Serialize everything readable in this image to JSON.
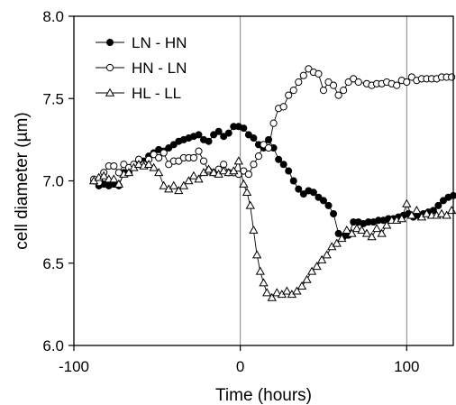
{
  "chart_data": {
    "type": "line",
    "title": "",
    "xlabel": "Time (hours)",
    "ylabel": "cell diameter (µm)",
    "xlim": [
      -100,
      128
    ],
    "ylim": [
      6.0,
      8.0
    ],
    "x_ticks": [
      -100,
      0,
      100
    ],
    "x_tick_labels": [
      "-100",
      "0",
      "100"
    ],
    "y_ticks": [
      6.0,
      6.5,
      7.0,
      7.5,
      8.0
    ],
    "y_tick_labels": [
      "6.0",
      "6.5",
      "7.0",
      "7.5",
      "8.0"
    ],
    "vertical_reference_lines": [
      0,
      100
    ],
    "grid": false,
    "legend_position": "top-left",
    "series": [
      {
        "name": "LN - HN",
        "marker": "filled-circle",
        "points": [
          [
            -88,
            7.0
          ],
          [
            -85,
            6.97
          ],
          [
            -82,
            6.98
          ],
          [
            -79,
            6.97
          ],
          [
            -76,
            6.98
          ],
          [
            -73,
            6.97
          ],
          [
            -70,
            7.05
          ],
          [
            -67,
            7.05
          ],
          [
            -64,
            7.09
          ],
          [
            -61,
            7.1
          ],
          [
            -58,
            7.12
          ],
          [
            -55,
            7.15
          ],
          [
            -52,
            7.17
          ],
          [
            -49,
            7.19
          ],
          [
            -46,
            7.18
          ],
          [
            -43,
            7.2
          ],
          [
            -40,
            7.22
          ],
          [
            -37,
            7.24
          ],
          [
            -34,
            7.25
          ],
          [
            -31,
            7.26
          ],
          [
            -28,
            7.27
          ],
          [
            -25,
            7.28
          ],
          [
            -22,
            7.25
          ],
          [
            -19,
            7.24
          ],
          [
            -16,
            7.28
          ],
          [
            -13,
            7.3
          ],
          [
            -10,
            7.27
          ],
          [
            -7,
            7.29
          ],
          [
            -4,
            7.33
          ],
          [
            -1,
            7.33
          ],
          [
            2,
            7.32
          ],
          [
            5,
            7.28
          ],
          [
            8,
            7.26
          ],
          [
            11,
            7.22
          ],
          [
            14,
            7.2
          ],
          [
            17,
            7.25
          ],
          [
            20,
            7.2
          ],
          [
            23,
            7.13
          ],
          [
            26,
            7.1
          ],
          [
            29,
            7.06
          ],
          [
            32,
            7.0
          ],
          [
            35,
            6.95
          ],
          [
            38,
            6.92
          ],
          [
            41,
            6.94
          ],
          [
            44,
            6.93
          ],
          [
            47,
            6.9
          ],
          [
            50,
            6.88
          ],
          [
            53,
            6.85
          ],
          [
            56,
            6.8
          ],
          [
            59,
            6.68
          ],
          [
            62,
            6.66
          ],
          [
            65,
            6.67
          ],
          [
            68,
            6.75
          ],
          [
            71,
            6.75
          ],
          [
            74,
            6.74
          ],
          [
            77,
            6.75
          ],
          [
            80,
            6.75
          ],
          [
            83,
            6.76
          ],
          [
            86,
            6.76
          ],
          [
            89,
            6.77
          ],
          [
            92,
            6.77
          ],
          [
            95,
            6.78
          ],
          [
            98,
            6.79
          ],
          [
            101,
            6.8
          ],
          [
            104,
            6.78
          ],
          [
            107,
            6.79
          ],
          [
            110,
            6.8
          ],
          [
            113,
            6.81
          ],
          [
            116,
            6.82
          ],
          [
            119,
            6.85
          ],
          [
            122,
            6.88
          ],
          [
            125,
            6.9
          ],
          [
            128,
            6.91
          ]
        ]
      },
      {
        "name": "HN - LN",
        "marker": "open-circle",
        "points": [
          [
            -88,
            7.01
          ],
          [
            -85,
            6.99
          ],
          [
            -82,
            7.05
          ],
          [
            -79,
            7.09
          ],
          [
            -76,
            7.09
          ],
          [
            -73,
            7.05
          ],
          [
            -70,
            7.1
          ],
          [
            -67,
            7.08
          ],
          [
            -64,
            7.1
          ],
          [
            -61,
            7.13
          ],
          [
            -58,
            7.1
          ],
          [
            -55,
            7.13
          ],
          [
            -52,
            7.16
          ],
          [
            -49,
            7.14
          ],
          [
            -46,
            7.17
          ],
          [
            -43,
            7.1
          ],
          [
            -40,
            7.12
          ],
          [
            -37,
            7.12
          ],
          [
            -34,
            7.14
          ],
          [
            -31,
            7.14
          ],
          [
            -28,
            7.14
          ],
          [
            -25,
            7.18
          ],
          [
            -22,
            7.12
          ],
          [
            -19,
            7.06
          ],
          [
            -16,
            7.05
          ],
          [
            -13,
            7.07
          ],
          [
            -10,
            7.1
          ],
          [
            -7,
            7.05
          ],
          [
            -4,
            7.05
          ],
          [
            -1,
            7.04
          ],
          [
            2,
            7.06
          ],
          [
            5,
            7.04
          ],
          [
            8,
            7.1
          ],
          [
            11,
            7.15
          ],
          [
            14,
            7.22
          ],
          [
            17,
            7.2
          ],
          [
            20,
            7.35
          ],
          [
            23,
            7.44
          ],
          [
            26,
            7.45
          ],
          [
            29,
            7.52
          ],
          [
            32,
            7.55
          ],
          [
            35,
            7.6
          ],
          [
            38,
            7.64
          ],
          [
            41,
            7.68
          ],
          [
            44,
            7.66
          ],
          [
            47,
            7.65
          ],
          [
            50,
            7.55
          ],
          [
            53,
            7.6
          ],
          [
            56,
            7.58
          ],
          [
            59,
            7.52
          ],
          [
            62,
            7.55
          ],
          [
            65,
            7.6
          ],
          [
            68,
            7.62
          ],
          [
            71,
            7.6
          ],
          [
            76,
            7.59
          ],
          [
            79,
            7.58
          ],
          [
            82,
            7.59
          ],
          [
            85,
            7.59
          ],
          [
            88,
            7.6
          ],
          [
            91,
            7.59
          ],
          [
            94,
            7.58
          ],
          [
            97,
            7.61
          ],
          [
            100,
            7.6
          ],
          [
            103,
            7.63
          ],
          [
            106,
            7.61
          ],
          [
            109,
            7.62
          ],
          [
            112,
            7.62
          ],
          [
            115,
            7.62
          ],
          [
            118,
            7.62
          ],
          [
            121,
            7.63
          ],
          [
            124,
            7.63
          ],
          [
            127,
            7.63
          ]
        ]
      },
      {
        "name": "HL - LL",
        "marker": "open-triangle",
        "points": [
          [
            -88,
            7.0
          ],
          [
            -85,
            7.02
          ],
          [
            -82,
            7.03
          ],
          [
            -79,
            7.01
          ],
          [
            -76,
            7.01
          ],
          [
            -73,
            6.98
          ],
          [
            -70,
            7.04
          ],
          [
            -67,
            7.05
          ],
          [
            -64,
            7.08
          ],
          [
            -61,
            7.1
          ],
          [
            -58,
            7.09
          ],
          [
            -55,
            7.1
          ],
          [
            -52,
            7.08
          ],
          [
            -49,
            7.05
          ],
          [
            -46,
            6.97
          ],
          [
            -43,
            6.95
          ],
          [
            -40,
            6.97
          ],
          [
            -37,
            6.94
          ],
          [
            -34,
            6.97
          ],
          [
            -31,
            7.0
          ],
          [
            -28,
            7.03
          ],
          [
            -25,
            7.01
          ],
          [
            -22,
            7.05
          ],
          [
            -19,
            7.07
          ],
          [
            -16,
            7.05
          ],
          [
            -13,
            7.04
          ],
          [
            -10,
            7.06
          ],
          [
            -7,
            7.05
          ],
          [
            -4,
            7.06
          ],
          [
            -1,
            7.12
          ],
          [
            2,
            6.98
          ],
          [
            4,
            6.93
          ],
          [
            6,
            6.85
          ],
          [
            8,
            6.7
          ],
          [
            10,
            6.55
          ],
          [
            12,
            6.45
          ],
          [
            14,
            6.38
          ],
          [
            16,
            6.32
          ],
          [
            19,
            6.29
          ],
          [
            22,
            6.32
          ],
          [
            25,
            6.31
          ],
          [
            28,
            6.33
          ],
          [
            31,
            6.31
          ],
          [
            34,
            6.33
          ],
          [
            37,
            6.36
          ],
          [
            40,
            6.4
          ],
          [
            43,
            6.45
          ],
          [
            46,
            6.48
          ],
          [
            49,
            6.52
          ],
          [
            52,
            6.55
          ],
          [
            55,
            6.6
          ],
          [
            58,
            6.62
          ],
          [
            61,
            6.65
          ],
          [
            64,
            6.7
          ],
          [
            67,
            6.68
          ],
          [
            70,
            6.71
          ],
          [
            73,
            6.7
          ],
          [
            76,
            6.68
          ],
          [
            79,
            6.66
          ],
          [
            82,
            6.71
          ],
          [
            85,
            6.68
          ],
          [
            88,
            6.73
          ],
          [
            91,
            6.76
          ],
          [
            94,
            6.76
          ],
          [
            97,
            6.77
          ],
          [
            100,
            6.86
          ],
          [
            103,
            6.79
          ],
          [
            106,
            6.82
          ],
          [
            109,
            6.78
          ],
          [
            112,
            6.8
          ],
          [
            115,
            6.79
          ],
          [
            118,
            6.79
          ],
          [
            121,
            6.8
          ],
          [
            124,
            6.79
          ],
          [
            127,
            6.82
          ]
        ]
      }
    ]
  }
}
